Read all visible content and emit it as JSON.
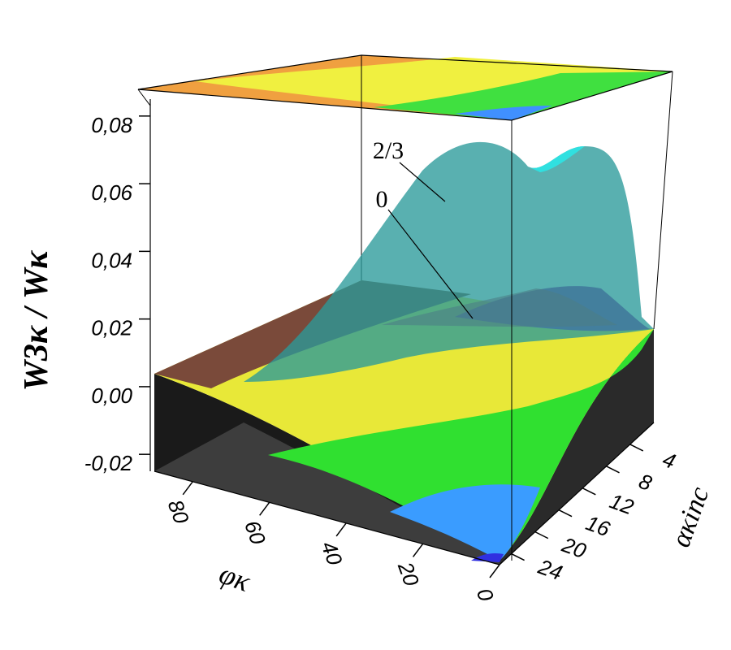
{
  "chart_data": {
    "type": "surface3d",
    "zlabel": "W3κ / Wκ",
    "xlabel": "φκ",
    "ylabel": "ακinc",
    "annotations": [
      "2/3",
      "0"
    ],
    "xlim": [
      0,
      90
    ],
    "xticks": [
      0,
      20,
      40,
      60,
      80
    ],
    "ylim": [
      0,
      26
    ],
    "yticks": [
      4,
      8,
      12,
      16,
      20,
      24
    ],
    "zlim": [
      -0.025,
      0.085
    ],
    "zticks": [
      {
        "value": -0.02,
        "label": "-0,02"
      },
      {
        "value": 0,
        "label": "0,00"
      },
      {
        "value": 0.02,
        "label": "0,02"
      },
      {
        "value": 0.04,
        "label": "0,04"
      },
      {
        "value": 0.06,
        "label": "0,06"
      },
      {
        "value": 0.08,
        "label": "0,08"
      }
    ]
  }
}
